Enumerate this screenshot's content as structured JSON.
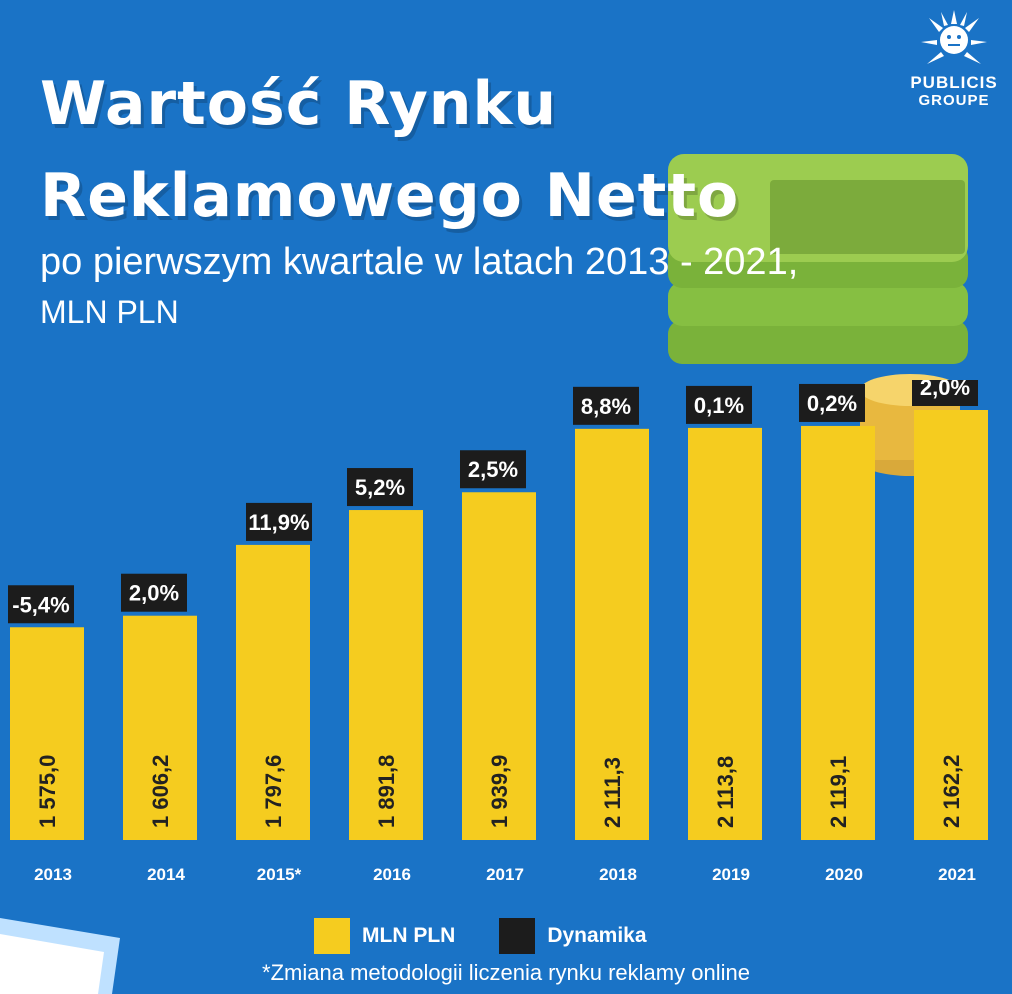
{
  "title_line1": "Wartość Rynku",
  "title_line2": "Reklamowego Netto",
  "subtitle": "po pierwszym kwartale w latach 2013 - 2021,",
  "subtitle_unit": "MLN PLN",
  "logo": {
    "line1": "PUBLICIS",
    "line2": "GROUPE"
  },
  "footnote": "*Zmiana metodologii liczenia rynku reklamy online",
  "colors": {
    "background": "#1a73c6",
    "bar": "#f5cc1f",
    "label_box": "#1c1c1c",
    "money": "#8dc63f",
    "coin": "#f2c94c"
  },
  "chart_data": {
    "type": "bar",
    "categories": [
      "2013",
      "2014",
      "2015*",
      "2016",
      "2017",
      "2018",
      "2019",
      "2020",
      "2021"
    ],
    "series": [
      {
        "name": "MLN PLN",
        "values": [
          1575.0,
          1606.2,
          1797.6,
          1891.8,
          1939.9,
          2111.3,
          2113.8,
          2119.1,
          2162.2
        ]
      },
      {
        "name": "Dynamika",
        "values": [
          -5.4,
          2.0,
          11.9,
          5.2,
          2.5,
          8.8,
          0.1,
          0.2,
          2.0
        ]
      }
    ],
    "value_labels": [
      "1 575,0",
      "1 606,2",
      "1 797,6",
      "1 891,8",
      "1 939,9",
      "2 111,3",
      "2 113,8",
      "2 119,1",
      "2 162,2"
    ],
    "change_labels": [
      "-5,4%",
      "2,0%",
      "11,9%",
      "5,2%",
      "2,5%",
      "8,8%",
      "0,1%",
      "0,2%",
      "2,0%"
    ],
    "legend": [
      {
        "label": "MLN PLN",
        "color": "#f5cc1f"
      },
      {
        "label": "Dynamika",
        "color": "#1c1c1c"
      }
    ],
    "legend_position": "bottom",
    "grid": false
  }
}
